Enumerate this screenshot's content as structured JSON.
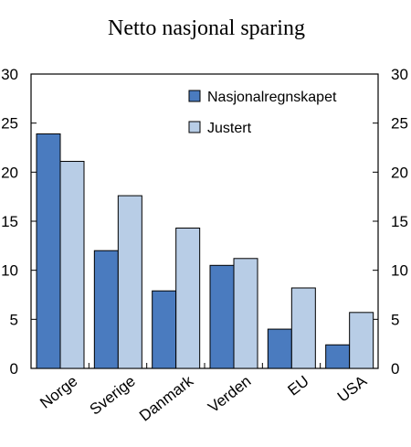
{
  "chart_data": {
    "type": "bar",
    "title": "Netto nasjonal sparing",
    "xlabel": "",
    "ylabel": "",
    "categories": [
      "Norge",
      "Sverige",
      "Danmark",
      "Verden",
      "EU",
      "USA"
    ],
    "series": [
      {
        "name": "Nasjonalregnskapet",
        "values": [
          23.9,
          12.0,
          7.9,
          10.5,
          4.0,
          2.4
        ],
        "color": "#4a7bbf"
      },
      {
        "name": "Justert",
        "values": [
          21.1,
          17.6,
          14.3,
          11.2,
          8.2,
          5.7
        ],
        "color": "#b8cde6"
      }
    ],
    "ylim": [
      0,
      30
    ],
    "yticks": [
      "0",
      "5",
      "10",
      "15",
      "20",
      "25",
      "30"
    ],
    "right_axis": true,
    "grid": false,
    "legend_position": "top-right"
  }
}
